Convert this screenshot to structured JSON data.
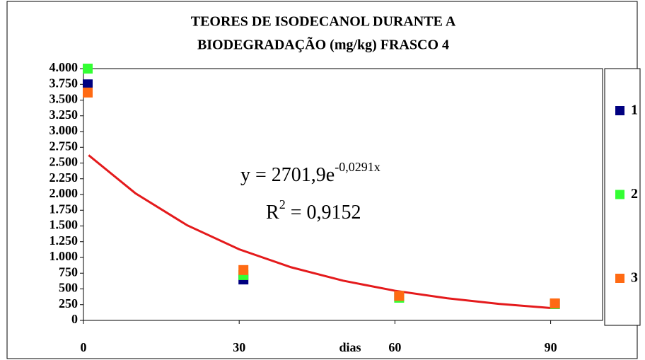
{
  "chart_data": {
    "type": "scatter",
    "title": [
      "TEORES DE ISODECANOL DURANTE A",
      "BIODEGRADAÇÃO (mg/kg) FRASCO 4"
    ],
    "x_label": "dias",
    "xlim": [
      0,
      100
    ],
    "xticks": [
      0,
      30,
      60,
      90
    ],
    "ylim": [
      0,
      4000
    ],
    "yticks": [
      0,
      250,
      500,
      750,
      {
        "value": 1000,
        "label": "1.000"
      },
      {
        "value": 1250,
        "label": "1.250"
      },
      {
        "value": 1500,
        "label": "1.500"
      },
      {
        "value": 1750,
        "label": "1.750"
      },
      {
        "value": 2000,
        "label": "2.000"
      },
      {
        "value": 2250,
        "label": "2.250"
      },
      {
        "value": 2500,
        "label": "2.500"
      },
      {
        "value": 2750,
        "label": "2.750"
      },
      {
        "value": 3000,
        "label": "3.000"
      },
      {
        "value": 3250,
        "label": "3.250"
      },
      {
        "value": 3500,
        "label": "3.500"
      },
      {
        "value": 3750,
        "label": "3.750"
      },
      {
        "value": 4000,
        "label": "4.000"
      }
    ],
    "grid": false,
    "legend": "right",
    "series": [
      {
        "name": "1",
        "color": "#000080",
        "x": [
          0,
          30,
          60,
          90
        ],
        "values": [
          3750,
          650,
          380,
          260
        ]
      },
      {
        "name": "2",
        "color": "#33ff33",
        "x": [
          0,
          30,
          60,
          90
        ],
        "values": [
          4000,
          720,
          360,
          260
        ]
      },
      {
        "name": "3",
        "color": "#ff6a13",
        "x": [
          0,
          30,
          60,
          90
        ],
        "values": [
          3620,
          800,
          390,
          270
        ]
      }
    ],
    "trendline": {
      "color": "#e41a1c",
      "x": [
        1,
        10,
        20,
        30,
        40,
        50,
        60,
        70,
        80,
        90
      ],
      "values": [
        2624,
        2020,
        1510,
        1129,
        844,
        631,
        471,
        352,
        263,
        197
      ]
    },
    "equation": {
      "base": "y = 2701,9e",
      "exponent": "-0,0291x"
    },
    "r_squared": {
      "base": "R",
      "exponent": "2",
      "rest": " = 0,9152"
    }
  }
}
